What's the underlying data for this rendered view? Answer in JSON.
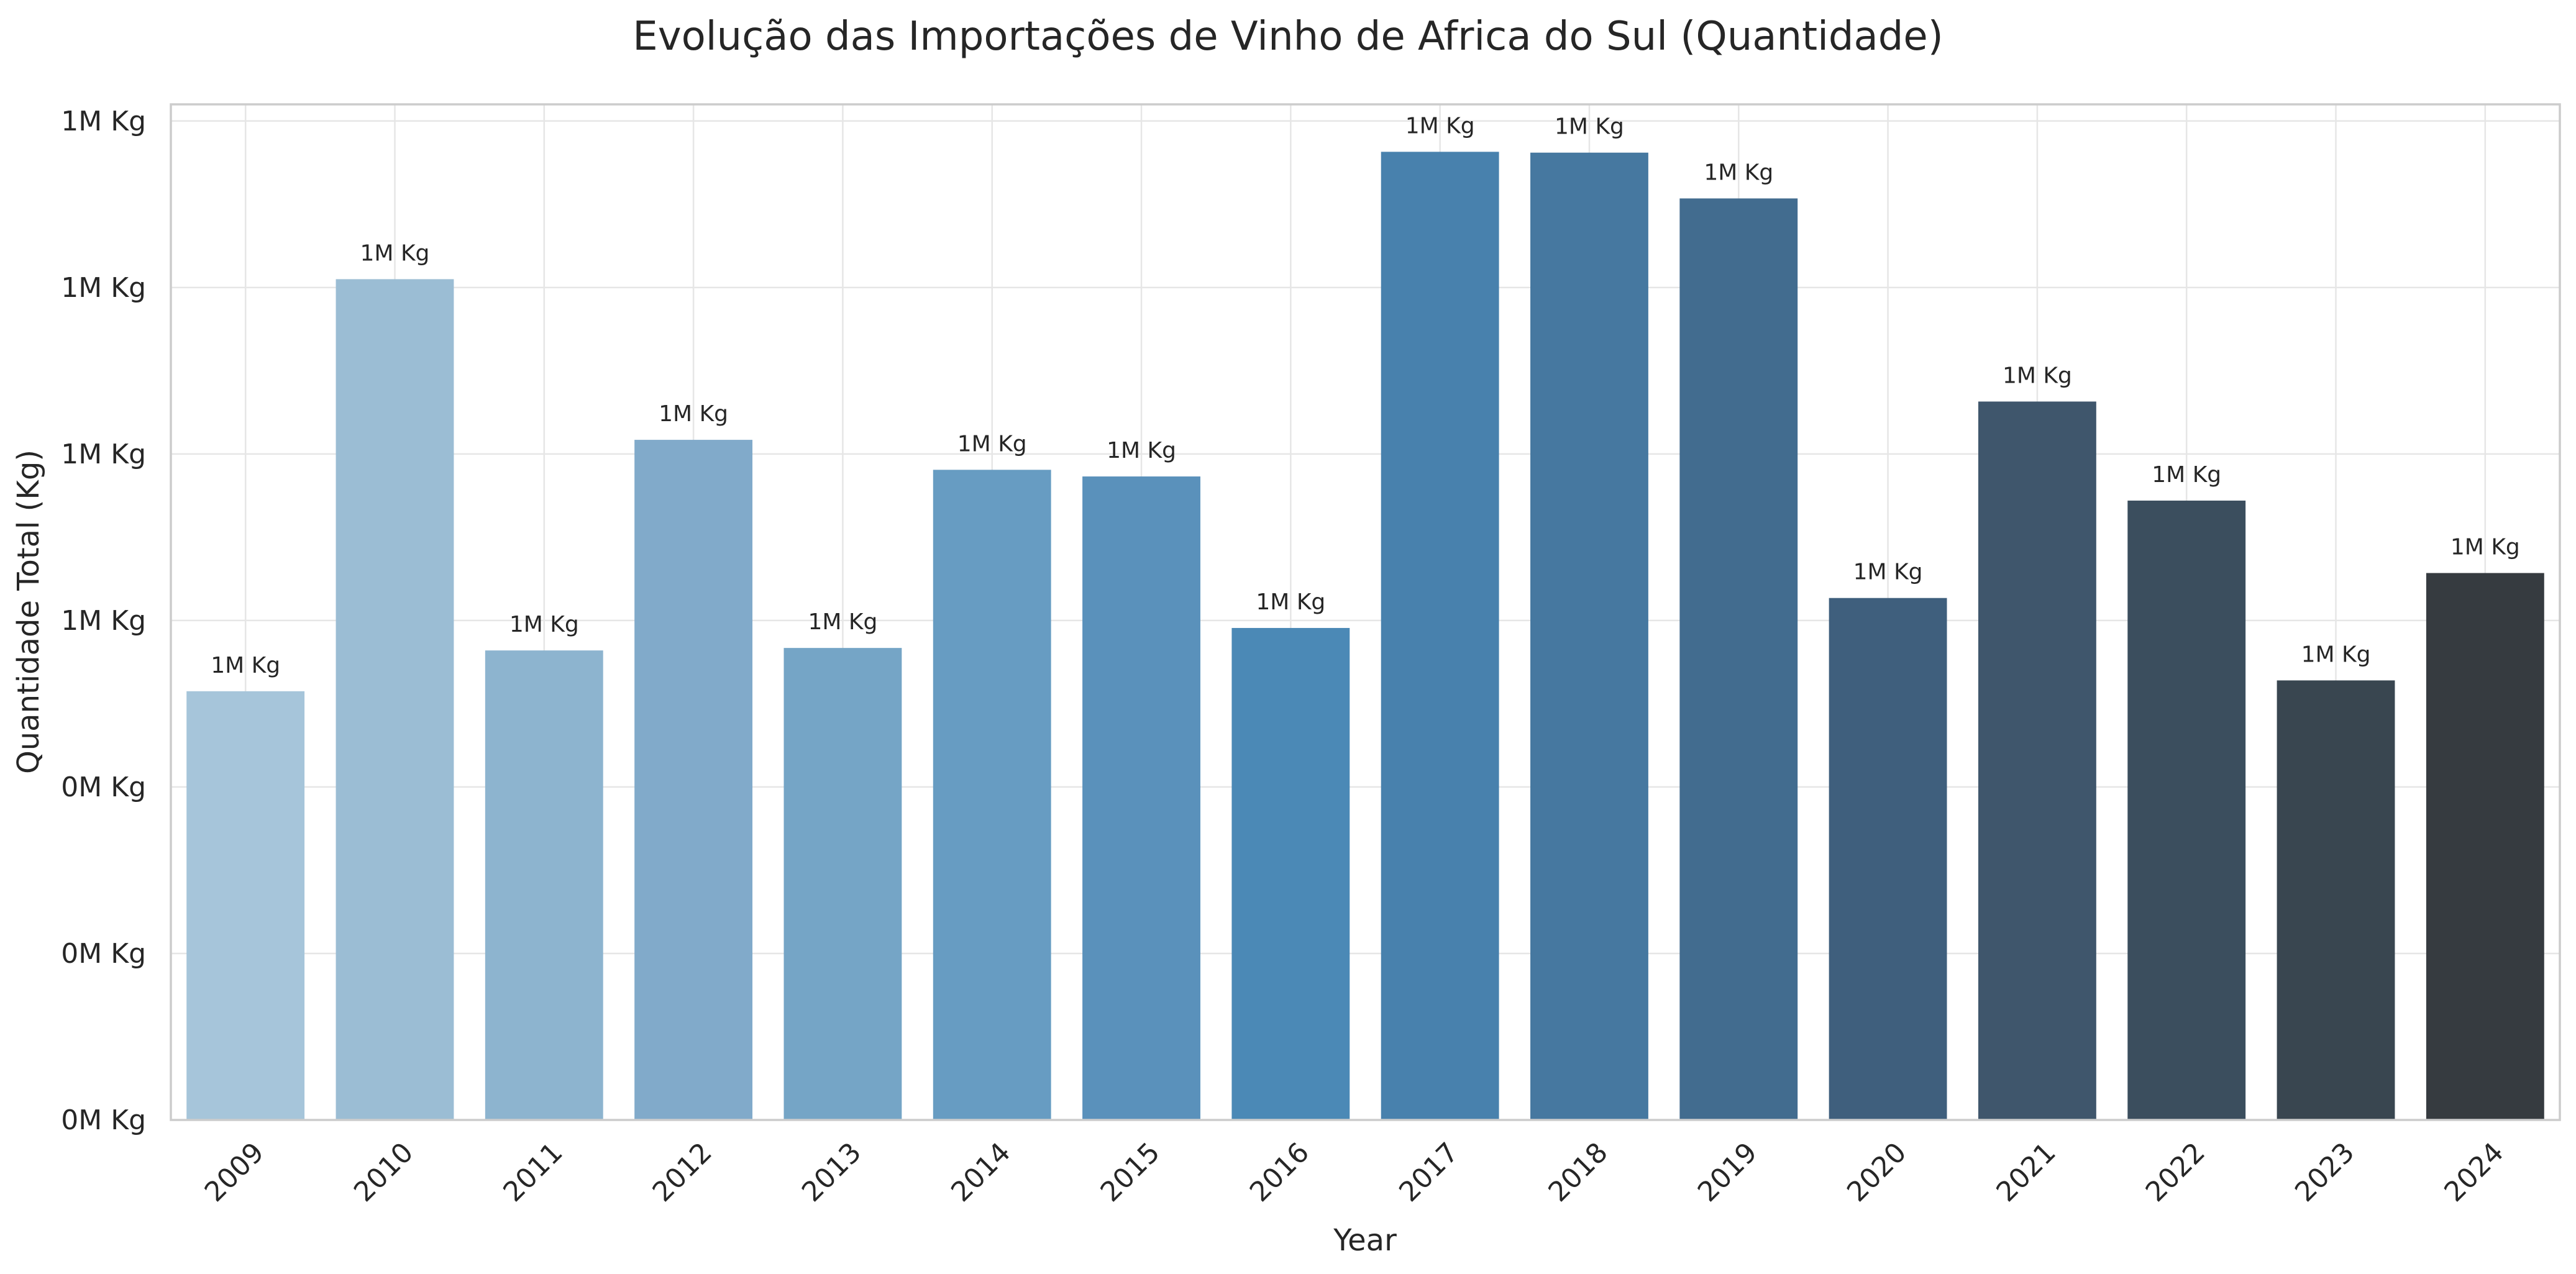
{
  "chart_data": {
    "type": "bar",
    "title": "Evolução das Importações de Vinho de Africa do Sul (Quantidade)",
    "xlabel": "Year",
    "ylabel": "Quantidade Total (Kg)",
    "categories": [
      "2009",
      "2010",
      "2011",
      "2012",
      "2013",
      "2014",
      "2015",
      "2016",
      "2017",
      "2018",
      "2019",
      "2020",
      "2021",
      "2022",
      "2023",
      "2024"
    ],
    "values": [
      515000,
      1010000,
      564000,
      817000,
      567000,
      781000,
      773000,
      591000,
      1163000,
      1162000,
      1107000,
      627000,
      863000,
      744000,
      528000,
      657000
    ],
    "value_labels": [
      "1M Kg",
      "1M Kg",
      "1M Kg",
      "1M Kg",
      "1M Kg",
      "1M Kg",
      "1M Kg",
      "1M Kg",
      "1M Kg",
      "1M Kg",
      "1M Kg",
      "1M Kg",
      "1M Kg",
      "1M Kg",
      "1M Kg",
      "1M Kg"
    ],
    "y_ticks": [
      0,
      200000,
      400000,
      600000,
      800000,
      1000000,
      1200000
    ],
    "y_tick_labels": [
      "0M Kg",
      "0M Kg",
      "0M Kg",
      "1M Kg",
      "1M Kg",
      "1M Kg",
      "1M Kg"
    ],
    "ylim": [
      0,
      1220000
    ],
    "grid": true,
    "colors": [
      "#a6c5da",
      "#9bbdd4",
      "#8db4cf",
      "#81aaca",
      "#75a5c6",
      "#679cc2",
      "#5a91bb",
      "#4b89b6",
      "#4881ad",
      "#4678a0",
      "#426c8f",
      "#3f5f7d",
      "#3f566c",
      "#3b4e5e",
      "#394650",
      "#363b40"
    ]
  }
}
